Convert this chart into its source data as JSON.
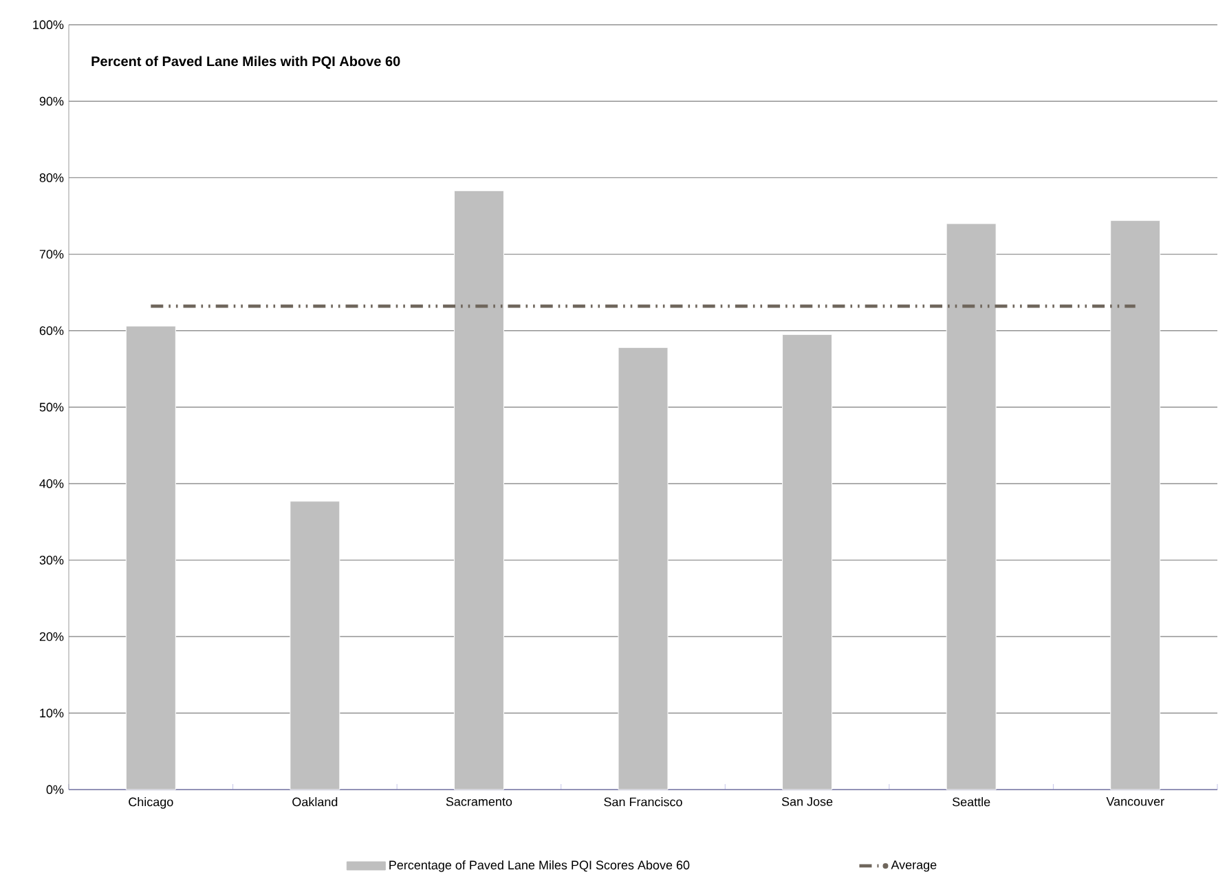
{
  "chart_data": {
    "type": "bar",
    "title": "Percent of Paved Lane Miles with PQI Above 60",
    "categories": [
      "Chicago",
      "Oakland",
      "Sacramento",
      "San Francisco",
      "San Jose",
      "Seattle",
      "Vancouver"
    ],
    "series": [
      {
        "name": "Percentage of Paved Lane Miles PQI Scores Above 60",
        "color": "#bfbfbf",
        "values": [
          60.6,
          37.7,
          78.3,
          57.8,
          59.5,
          74.0,
          74.4
        ]
      },
      {
        "name": "Average",
        "type": "line",
        "color": "#6f665c",
        "line_style": "dashed",
        "values": [
          63.2,
          63.2,
          63.2,
          63.2,
          63.2,
          63.2,
          63.2
        ]
      }
    ],
    "ylim": [
      0,
      100
    ],
    "yticks": [
      {
        "value": 0,
        "label": "0%"
      },
      {
        "value": 10,
        "label": "10%"
      },
      {
        "value": 20,
        "label": "20%"
      },
      {
        "value": 30,
        "label": "30%"
      },
      {
        "value": 40,
        "label": "40%"
      },
      {
        "value": 50,
        "label": "50%"
      },
      {
        "value": 60,
        "label": "60%"
      },
      {
        "value": 70,
        "label": "70%"
      },
      {
        "value": 80,
        "label": "80%"
      },
      {
        "value": 90,
        "label": "90%"
      },
      {
        "value": 100,
        "label": "100%"
      }
    ],
    "grid": "y",
    "legend": "bottom"
  }
}
